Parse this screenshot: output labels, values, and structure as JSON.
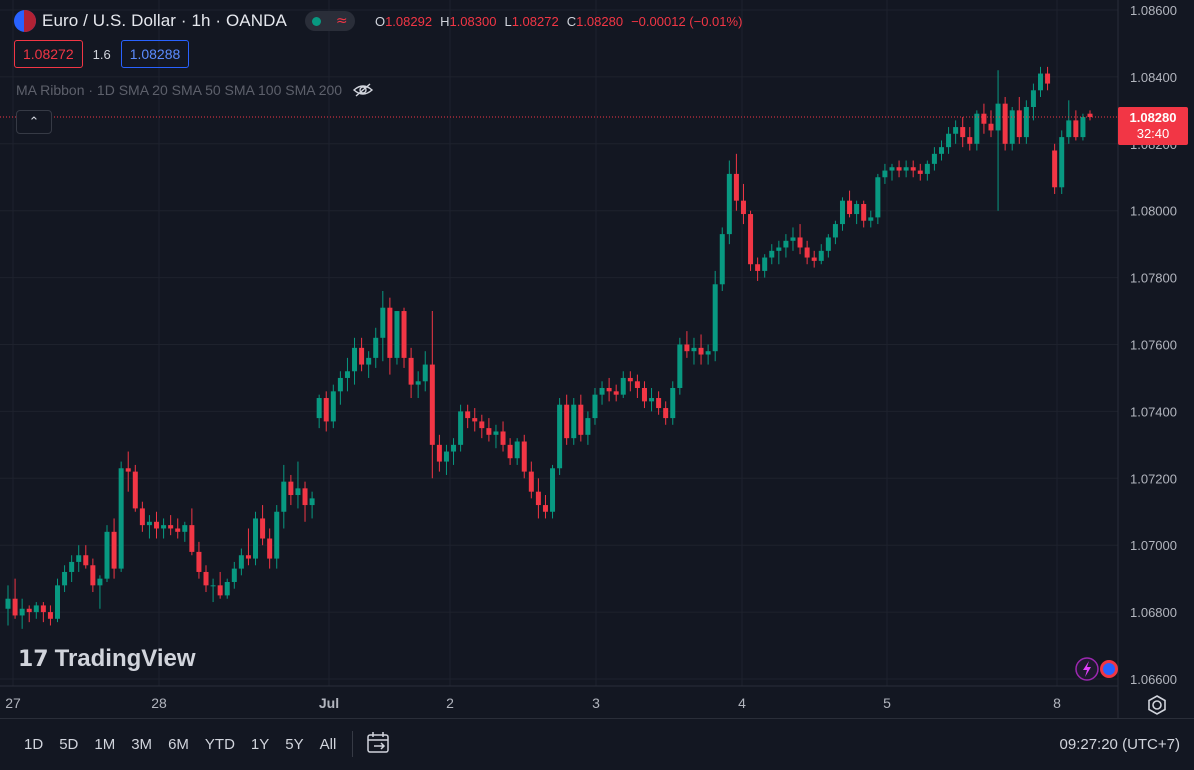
{
  "header": {
    "title": "Euro / U.S. Dollar · 1h · OANDA",
    "ohlc": {
      "o_label": "O",
      "o": "1.08292",
      "h_label": "H",
      "h": "1.08300",
      "l_label": "L",
      "l": "1.08272",
      "c_label": "C",
      "c": "1.08280",
      "change": "−0.00012 (−0.01%)"
    },
    "sell_price": "1.08272",
    "spread": "1.6",
    "buy_price": "1.08288",
    "indicator": "MA Ribbon · 1D SMA 20 SMA 50 SMA 100 SMA 200",
    "collapse_glyph": "⌃"
  },
  "brand": {
    "logo_mark": "17",
    "logo_text": "TradingView"
  },
  "price_tag": {
    "price": "1.08280",
    "countdown": "32:40"
  },
  "bottom_bar": {
    "ranges": [
      "1D",
      "5D",
      "1M",
      "3M",
      "6M",
      "YTD",
      "1Y",
      "5Y",
      "All"
    ],
    "clock": "09:27:20 (UTC+7)"
  },
  "colors": {
    "up": "#089981",
    "down": "#f23645",
    "background": "#131722",
    "grid": "#1e222d",
    "text": "#b2b5be"
  },
  "chart_data": {
    "type": "candlestick",
    "symbol": "EURUSD",
    "interval": "1h",
    "ylim": [
      1.0654,
      1.0864
    ],
    "y_ticks": [
      "1.06600",
      "1.06800",
      "1.07000",
      "1.07200",
      "1.07400",
      "1.07600",
      "1.07800",
      "1.08000",
      "1.08200",
      "1.08400",
      "1.08600"
    ],
    "x_ticks": [
      "27",
      "28",
      "Jul",
      "2",
      "3",
      "4",
      "5",
      "8"
    ],
    "current_price": "1.08280",
    "grid": true,
    "candles_ohlc": [
      [
        1.0681,
        1.0688,
        1.0676,
        1.0684
      ],
      [
        1.0684,
        1.069,
        1.0678,
        1.0679
      ],
      [
        1.0679,
        1.0684,
        1.0675,
        1.0681
      ],
      [
        1.0681,
        1.0682,
        1.0677,
        1.068
      ],
      [
        1.068,
        1.0683,
        1.0678,
        1.0682
      ],
      [
        1.0682,
        1.0683,
        1.0677,
        1.068
      ],
      [
        1.068,
        1.0682,
        1.0676,
        1.0678
      ],
      [
        1.0678,
        1.069,
        1.0677,
        1.0688
      ],
      [
        1.0688,
        1.0694,
        1.0686,
        1.0692
      ],
      [
        1.0692,
        1.0697,
        1.0689,
        1.0695
      ],
      [
        1.0695,
        1.07,
        1.0692,
        1.0697
      ],
      [
        1.0697,
        1.07,
        1.0693,
        1.0694
      ],
      [
        1.0694,
        1.0696,
        1.0686,
        1.0688
      ],
      [
        1.0688,
        1.0691,
        1.0681,
        1.069
      ],
      [
        1.069,
        1.0706,
        1.0689,
        1.0704
      ],
      [
        1.0704,
        1.0708,
        1.069,
        1.0693
      ],
      [
        1.0693,
        1.0725,
        1.0692,
        1.0723
      ],
      [
        1.0723,
        1.0728,
        1.0716,
        1.0722
      ],
      [
        1.0722,
        1.0724,
        1.071,
        1.0711
      ],
      [
        1.0711,
        1.0713,
        1.0704,
        1.0706
      ],
      [
        1.0706,
        1.0709,
        1.0702,
        1.0707
      ],
      [
        1.0707,
        1.071,
        1.0702,
        1.0705
      ],
      [
        1.0705,
        1.0708,
        1.0702,
        1.0706
      ],
      [
        1.0706,
        1.0709,
        1.0703,
        1.0705
      ],
      [
        1.0705,
        1.0708,
        1.0702,
        1.0704
      ],
      [
        1.0704,
        1.0707,
        1.0701,
        1.0706
      ],
      [
        1.0706,
        1.0711,
        1.0697,
        1.0698
      ],
      [
        1.0698,
        1.0701,
        1.069,
        1.0692
      ],
      [
        1.0692,
        1.0694,
        1.0686,
        1.0688
      ],
      [
        1.0688,
        1.069,
        1.0683,
        1.0688
      ],
      [
        1.0688,
        1.0692,
        1.0684,
        1.0685
      ],
      [
        1.0685,
        1.069,
        1.0684,
        1.0689
      ],
      [
        1.0689,
        1.0695,
        1.0687,
        1.0693
      ],
      [
        1.0693,
        1.0699,
        1.0691,
        1.0697
      ],
      [
        1.0697,
        1.0705,
        1.0694,
        1.0696
      ],
      [
        1.0696,
        1.071,
        1.0694,
        1.0708
      ],
      [
        1.0708,
        1.0712,
        1.07,
        1.0702
      ],
      [
        1.0702,
        1.0705,
        1.0693,
        1.0696
      ],
      [
        1.0696,
        1.0712,
        1.0693,
        1.071
      ],
      [
        1.071,
        1.0724,
        1.0705,
        1.0719
      ],
      [
        1.0719,
        1.0721,
        1.0712,
        1.0715
      ],
      [
        1.0715,
        1.0725,
        1.0711,
        1.0717
      ],
      [
        1.0717,
        1.0719,
        1.0707,
        1.0712
      ],
      [
        1.0712,
        1.0716,
        1.0708,
        1.0714
      ],
      [
        1.0738,
        1.0745,
        1.0735,
        1.0744
      ],
      [
        1.0744,
        1.0746,
        1.0734,
        1.0737
      ],
      [
        1.0737,
        1.0748,
        1.0735,
        1.0746
      ],
      [
        1.0746,
        1.0752,
        1.0742,
        1.075
      ],
      [
        1.075,
        1.0756,
        1.0746,
        1.0752
      ],
      [
        1.0752,
        1.0762,
        1.0748,
        1.0759
      ],
      [
        1.0759,
        1.0762,
        1.0752,
        1.0754
      ],
      [
        1.0754,
        1.0758,
        1.075,
        1.0756
      ],
      [
        1.0756,
        1.0765,
        1.0753,
        1.0762
      ],
      [
        1.0762,
        1.0776,
        1.0755,
        1.0771
      ],
      [
        1.0771,
        1.0774,
        1.0751,
        1.0756
      ],
      [
        1.0756,
        1.077,
        1.0754,
        1.077
      ],
      [
        1.077,
        1.0771,
        1.0753,
        1.0756
      ],
      [
        1.0756,
        1.0759,
        1.0744,
        1.0748
      ],
      [
        1.0748,
        1.0752,
        1.0744,
        1.0749
      ],
      [
        1.0749,
        1.0758,
        1.0746,
        1.0754
      ],
      [
        1.0754,
        1.077,
        1.072,
        1.073
      ],
      [
        1.073,
        1.0733,
        1.0722,
        1.0725
      ],
      [
        1.0725,
        1.073,
        1.0721,
        1.0728
      ],
      [
        1.0728,
        1.0732,
        1.0724,
        1.073
      ],
      [
        1.073,
        1.0742,
        1.0728,
        1.074
      ],
      [
        1.074,
        1.0742,
        1.0735,
        1.0738
      ],
      [
        1.0738,
        1.0741,
        1.0734,
        1.0737
      ],
      [
        1.0737,
        1.0739,
        1.0732,
        1.0735
      ],
      [
        1.0735,
        1.0738,
        1.0731,
        1.0733
      ],
      [
        1.0733,
        1.0736,
        1.0729,
        1.0734
      ],
      [
        1.0734,
        1.0737,
        1.0728,
        1.073
      ],
      [
        1.073,
        1.0732,
        1.0724,
        1.0726
      ],
      [
        1.0726,
        1.0732,
        1.0724,
        1.0731
      ],
      [
        1.0731,
        1.0733,
        1.072,
        1.0722
      ],
      [
        1.0722,
        1.0725,
        1.0714,
        1.0716
      ],
      [
        1.0716,
        1.072,
        1.0708,
        1.0712
      ],
      [
        1.0712,
        1.0715,
        1.0708,
        1.071
      ],
      [
        1.071,
        1.0724,
        1.0708,
        1.0723
      ],
      [
        1.0723,
        1.0744,
        1.0721,
        1.0742
      ],
      [
        1.0742,
        1.0745,
        1.073,
        1.0732
      ],
      [
        1.0732,
        1.0744,
        1.073,
        1.0742
      ],
      [
        1.0742,
        1.0745,
        1.0731,
        1.0733
      ],
      [
        1.0733,
        1.074,
        1.073,
        1.0738
      ],
      [
        1.0738,
        1.0747,
        1.0736,
        1.0745
      ],
      [
        1.0745,
        1.0749,
        1.0742,
        1.0747
      ],
      [
        1.0747,
        1.075,
        1.0743,
        1.0746
      ],
      [
        1.0746,
        1.0748,
        1.0743,
        1.0745
      ],
      [
        1.0745,
        1.0752,
        1.0744,
        1.075
      ],
      [
        1.075,
        1.0752,
        1.0746,
        1.0749
      ],
      [
        1.0749,
        1.0751,
        1.0744,
        1.0747
      ],
      [
        1.0747,
        1.0749,
        1.0741,
        1.0743
      ],
      [
        1.0743,
        1.0747,
        1.074,
        1.0744
      ],
      [
        1.0744,
        1.0746,
        1.0739,
        1.0741
      ],
      [
        1.0741,
        1.0743,
        1.0736,
        1.0738
      ],
      [
        1.0738,
        1.0749,
        1.0736,
        1.0747
      ],
      [
        1.0747,
        1.0762,
        1.0745,
        1.076
      ],
      [
        1.076,
        1.0764,
        1.0756,
        1.0758
      ],
      [
        1.0758,
        1.0762,
        1.0754,
        1.0759
      ],
      [
        1.0759,
        1.0763,
        1.0754,
        1.0757
      ],
      [
        1.0757,
        1.076,
        1.0754,
        1.0758
      ],
      [
        1.0758,
        1.0782,
        1.0755,
        1.0778
      ],
      [
        1.0778,
        1.0795,
        1.0776,
        1.0793
      ],
      [
        1.0793,
        1.0815,
        1.079,
        1.0811
      ],
      [
        1.0811,
        1.0817,
        1.08,
        1.0803
      ],
      [
        1.0803,
        1.0808,
        1.0796,
        1.0799
      ],
      [
        1.0799,
        1.08,
        1.0782,
        1.0784
      ],
      [
        1.0784,
        1.0786,
        1.0779,
        1.0782
      ],
      [
        1.0782,
        1.0787,
        1.078,
        1.0786
      ],
      [
        1.0786,
        1.079,
        1.0784,
        1.0788
      ],
      [
        1.0788,
        1.0791,
        1.0784,
        1.0789
      ],
      [
        1.0789,
        1.0793,
        1.0786,
        1.0791
      ],
      [
        1.0791,
        1.0795,
        1.0788,
        1.0792
      ],
      [
        1.0792,
        1.0796,
        1.0787,
        1.0789
      ],
      [
        1.0789,
        1.0791,
        1.0784,
        1.0786
      ],
      [
        1.0786,
        1.0788,
        1.0783,
        1.0785
      ],
      [
        1.0785,
        1.079,
        1.0784,
        1.0788
      ],
      [
        1.0788,
        1.0793,
        1.0786,
        1.0792
      ],
      [
        1.0792,
        1.0797,
        1.079,
        1.0796
      ],
      [
        1.0796,
        1.0804,
        1.0794,
        1.0803
      ],
      [
        1.0803,
        1.0806,
        1.0798,
        1.0799
      ],
      [
        1.0799,
        1.0803,
        1.0796,
        1.0802
      ],
      [
        1.0802,
        1.0803,
        1.0795,
        1.0797
      ],
      [
        1.0797,
        1.08,
        1.0795,
        1.0798
      ],
      [
        1.0798,
        1.0811,
        1.0796,
        1.081
      ],
      [
        1.081,
        1.0814,
        1.0808,
        1.0812
      ],
      [
        1.0812,
        1.0814,
        1.0809,
        1.0813
      ],
      [
        1.0813,
        1.0815,
        1.081,
        1.0812
      ],
      [
        1.0812,
        1.0815,
        1.081,
        1.0813
      ],
      [
        1.0813,
        1.0815,
        1.081,
        1.0812
      ],
      [
        1.0812,
        1.0814,
        1.0809,
        1.0811
      ],
      [
        1.0811,
        1.0815,
        1.0809,
        1.0814
      ],
      [
        1.0814,
        1.0819,
        1.0812,
        1.0817
      ],
      [
        1.0817,
        1.0821,
        1.0815,
        1.0819
      ],
      [
        1.0819,
        1.0825,
        1.0817,
        1.0823
      ],
      [
        1.0823,
        1.0827,
        1.082,
        1.0825
      ],
      [
        1.0825,
        1.0828,
        1.0819,
        1.0822
      ],
      [
        1.0822,
        1.0825,
        1.0818,
        1.082
      ],
      [
        1.082,
        1.083,
        1.0818,
        1.0829
      ],
      [
        1.0829,
        1.0832,
        1.0823,
        1.0826
      ],
      [
        1.0826,
        1.083,
        1.0822,
        1.0824
      ],
      [
        1.0824,
        1.0842,
        1.08,
        1.0832
      ],
      [
        1.0832,
        1.0834,
        1.0818,
        1.082
      ],
      [
        1.082,
        1.0831,
        1.0818,
        1.083
      ],
      [
        1.083,
        1.0834,
        1.082,
        1.0822
      ],
      [
        1.0822,
        1.0833,
        1.082,
        1.0831
      ],
      [
        1.0831,
        1.0838,
        1.0827,
        1.0836
      ],
      [
        1.0836,
        1.0843,
        1.0834,
        1.0841
      ],
      [
        1.0841,
        1.0843,
        1.0836,
        1.0838
      ],
      [
        1.0818,
        1.082,
        1.0805,
        1.0807
      ],
      [
        1.0807,
        1.0824,
        1.0805,
        1.0822
      ],
      [
        1.0822,
        1.0833,
        1.082,
        1.0827
      ],
      [
        1.0827,
        1.083,
        1.0821,
        1.0822
      ],
      [
        1.0822,
        1.0829,
        1.0821,
        1.0828
      ],
      [
        1.0829,
        1.083,
        1.0827,
        1.0828
      ]
    ]
  }
}
